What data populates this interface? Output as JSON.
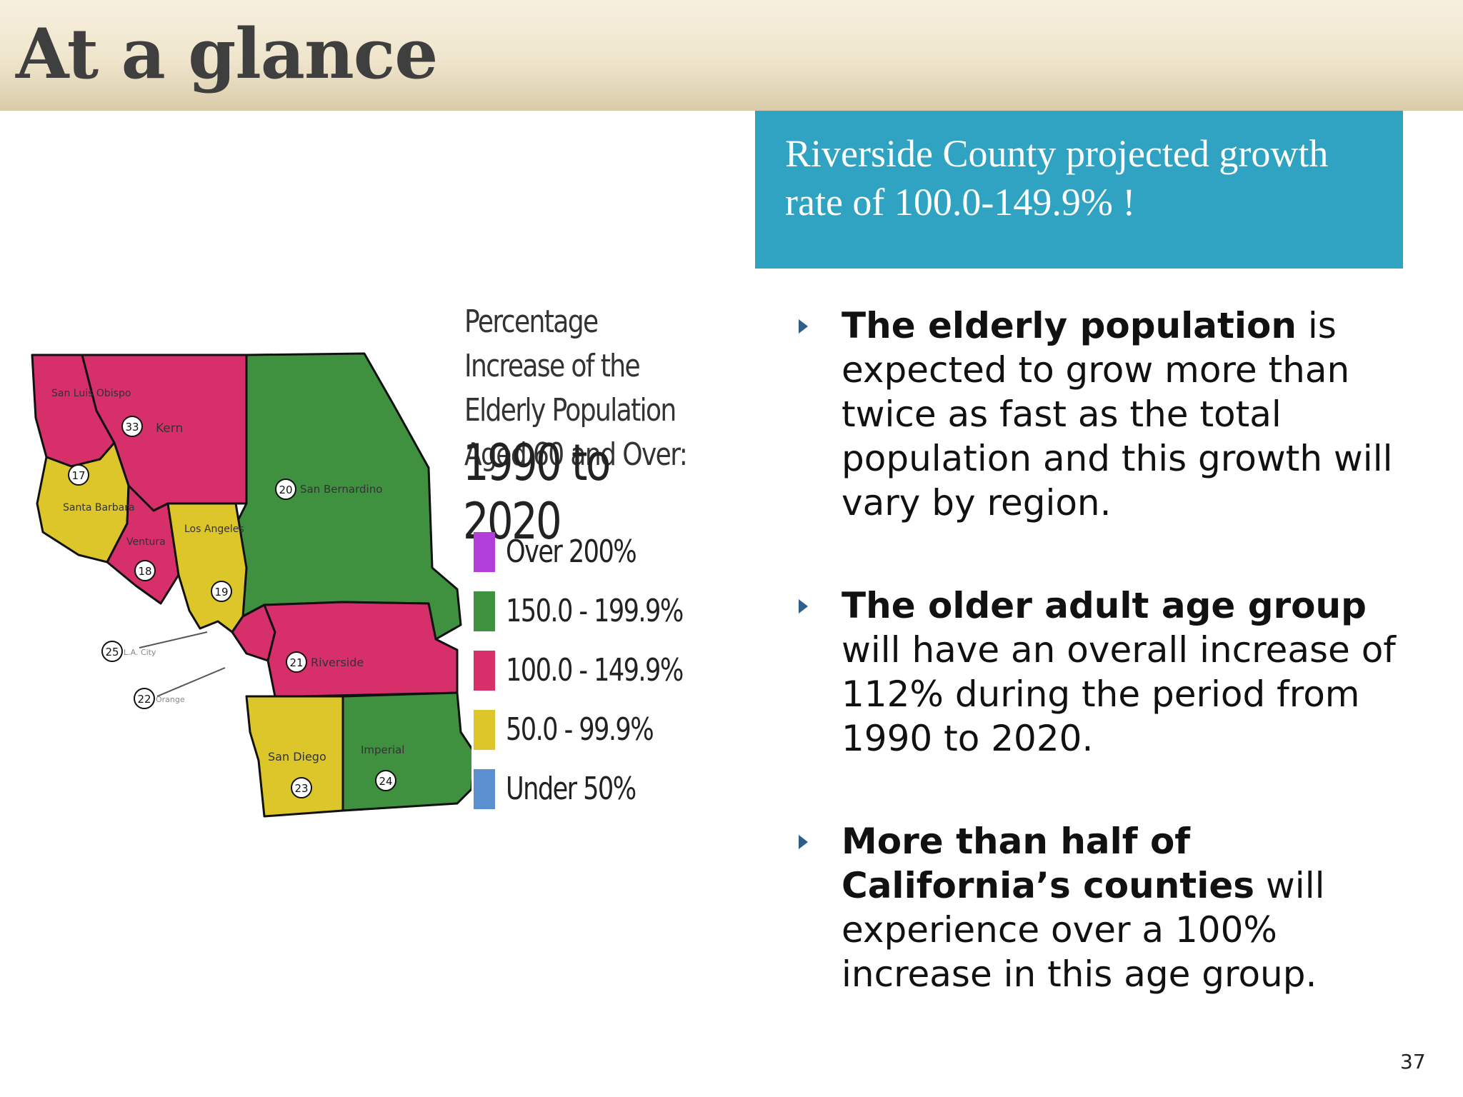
{
  "slide": {
    "title": "At a glance",
    "page_number": "37"
  },
  "callout": {
    "text": "Riverside County projected growth rate of 100.0-149.9% !"
  },
  "map": {
    "legend": {
      "title": "Percentage Increase of the Elderly Population Aged 60 and Over:",
      "period": "1990 to 2020",
      "items": [
        {
          "label": "Over 200%",
          "color": "#b23fd9"
        },
        {
          "label": "150.0 - 199.9%",
          "color": "#3f9140"
        },
        {
          "label": "100.0 - 149.9%",
          "color": "#d72f6a"
        },
        {
          "label": "50.0 - 99.9%",
          "color": "#dcc62a"
        },
        {
          "label": "Under 50%",
          "color": "#5a8fd0"
        }
      ]
    },
    "counties": [
      {
        "name": "San Luis Obispo",
        "number": "17",
        "category": "100.0 - 149.9%"
      },
      {
        "name": "Kern",
        "number": "33",
        "category": "100.0 - 149.9%"
      },
      {
        "name": "Santa Barbara",
        "number": "",
        "category": "50.0 - 99.9%"
      },
      {
        "name": "Ventura",
        "number": "18",
        "category": "100.0 - 149.9%"
      },
      {
        "name": "Los Angeles",
        "number": "19",
        "category": "50.0 - 99.9%"
      },
      {
        "name": "San Bernardino",
        "number": "20",
        "category": "150.0 - 199.9%"
      },
      {
        "name": "Riverside",
        "number": "21",
        "category": "100.0 - 149.9%"
      },
      {
        "name": "Orange",
        "number": "22",
        "category": "100.0 - 149.9%"
      },
      {
        "name": "San Diego",
        "number": "23",
        "category": "50.0 - 99.9%"
      },
      {
        "name": "Imperial",
        "number": "24",
        "category": "150.0 - 199.9%"
      },
      {
        "name": "L.A. City",
        "number": "25",
        "category": "50.0 - 99.9%"
      }
    ]
  },
  "bullets": [
    {
      "bold": "The elderly population",
      "rest": " is expected to grow more than twice as fast as the total population and this growth will vary by region."
    },
    {
      "bold": "The older adult age group",
      "rest": " will have an overall increase of 112% during the period from 1990 to 2020."
    },
    {
      "bold": "More than half of California’s counties",
      "rest": " will experience over a 100% increase in this age group."
    }
  ]
}
